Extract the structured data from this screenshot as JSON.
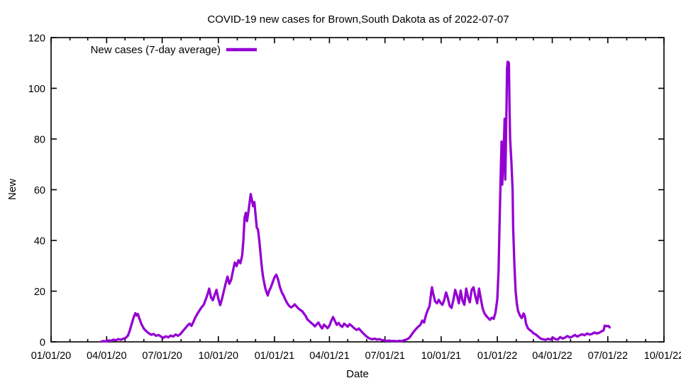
{
  "title": "COVID-19 new cases for Brown,South Dakota as of 2022-07-07",
  "chart_data": {
    "type": "line",
    "title": "COVID-19 new cases for Brown,South Dakota as of 2022-07-07",
    "xlabel": "Date",
    "ylabel": "New",
    "ylim": [
      0,
      120
    ],
    "xlim": [
      "2020-01-01",
      "2022-10-01"
    ],
    "grid": false,
    "legend_position": "top-left-inside",
    "y_ticks": [
      0,
      20,
      40,
      60,
      80,
      100,
      120
    ],
    "x_tick_labels": [
      "01/01/20",
      "04/01/20",
      "07/01/20",
      "10/01/20",
      "01/01/21",
      "04/01/21",
      "07/01/21",
      "10/01/21",
      "01/01/22",
      "04/01/22",
      "07/01/22",
      "10/01/22"
    ],
    "line_color": "#9400d3",
    "series": [
      {
        "name": "New cases (7-day average)",
        "color": "#9400d3",
        "points": [
          [
            "2020-03-23",
            0.1
          ],
          [
            "2020-03-27",
            0.3
          ],
          [
            "2020-03-31",
            0.2
          ],
          [
            "2020-04-04",
            0.6
          ],
          [
            "2020-04-08",
            0.4
          ],
          [
            "2020-04-12",
            0.9
          ],
          [
            "2020-04-16",
            0.6
          ],
          [
            "2020-04-20",
            1.1
          ],
          [
            "2020-04-24",
            0.8
          ],
          [
            "2020-04-28",
            1.2
          ],
          [
            "2020-05-02",
            1.5
          ],
          [
            "2020-05-06",
            2.5
          ],
          [
            "2020-05-09",
            4.5
          ],
          [
            "2020-05-12",
            7.0
          ],
          [
            "2020-05-15",
            9.5
          ],
          [
            "2020-05-18",
            11.3
          ],
          [
            "2020-05-20",
            10.4
          ],
          [
            "2020-05-22",
            11.0
          ],
          [
            "2020-05-25",
            9.0
          ],
          [
            "2020-05-28",
            7.0
          ],
          [
            "2020-06-01",
            5.2
          ],
          [
            "2020-06-05",
            4.2
          ],
          [
            "2020-06-09",
            3.4
          ],
          [
            "2020-06-13",
            2.8
          ],
          [
            "2020-06-17",
            3.1
          ],
          [
            "2020-06-21",
            2.4
          ],
          [
            "2020-06-25",
            2.7
          ],
          [
            "2020-06-29",
            2.1
          ],
          [
            "2020-07-03",
            1.6
          ],
          [
            "2020-07-07",
            2.2
          ],
          [
            "2020-07-11",
            1.8
          ],
          [
            "2020-07-15",
            2.5
          ],
          [
            "2020-07-19",
            2.1
          ],
          [
            "2020-07-23",
            2.9
          ],
          [
            "2020-07-27",
            2.4
          ],
          [
            "2020-07-31",
            3.1
          ],
          [
            "2020-08-04",
            4.3
          ],
          [
            "2020-08-08",
            5.4
          ],
          [
            "2020-08-12",
            6.6
          ],
          [
            "2020-08-15",
            7.2
          ],
          [
            "2020-08-18",
            6.3
          ],
          [
            "2020-08-21",
            7.8
          ],
          [
            "2020-08-24",
            9.5
          ],
          [
            "2020-08-27",
            10.8
          ],
          [
            "2020-08-30",
            12.0
          ],
          [
            "2020-09-03",
            13.5
          ],
          [
            "2020-09-07",
            14.6
          ],
          [
            "2020-09-10",
            16.5
          ],
          [
            "2020-09-13",
            18.5
          ],
          [
            "2020-09-16",
            21.0
          ],
          [
            "2020-09-19",
            17.5
          ],
          [
            "2020-09-22",
            16.4
          ],
          [
            "2020-09-25",
            18.5
          ],
          [
            "2020-09-28",
            20.5
          ],
          [
            "2020-10-01",
            17.0
          ],
          [
            "2020-10-04",
            14.5
          ],
          [
            "2020-10-07",
            17.0
          ],
          [
            "2020-10-10",
            20.0
          ],
          [
            "2020-10-13",
            23.0
          ],
          [
            "2020-10-16",
            25.7
          ],
          [
            "2020-10-19",
            22.9
          ],
          [
            "2020-10-22",
            24.5
          ],
          [
            "2020-10-25",
            28.0
          ],
          [
            "2020-10-28",
            31.3
          ],
          [
            "2020-10-31",
            29.9
          ],
          [
            "2020-11-03",
            32.2
          ],
          [
            "2020-11-06",
            31.0
          ],
          [
            "2020-11-09",
            34.1
          ],
          [
            "2020-11-11",
            40.0
          ],
          [
            "2020-11-13",
            49.0
          ],
          [
            "2020-11-15",
            50.9
          ],
          [
            "2020-11-17",
            47.6
          ],
          [
            "2020-11-19",
            51.0
          ],
          [
            "2020-11-21",
            54.5
          ],
          [
            "2020-11-23",
            58.3
          ],
          [
            "2020-11-25",
            56.0
          ],
          [
            "2020-11-27",
            53.5
          ],
          [
            "2020-11-29",
            55.1
          ],
          [
            "2020-12-01",
            50.0
          ],
          [
            "2020-12-03",
            45.0
          ],
          [
            "2020-12-05",
            44.3
          ],
          [
            "2020-12-07",
            40.0
          ],
          [
            "2020-12-09",
            35.0
          ],
          [
            "2020-12-11",
            30.0
          ],
          [
            "2020-12-13",
            26.0
          ],
          [
            "2020-12-15",
            23.5
          ],
          [
            "2020-12-17",
            21.0
          ],
          [
            "2020-12-19",
            19.5
          ],
          [
            "2020-12-21",
            18.3
          ],
          [
            "2020-12-23",
            20.0
          ],
          [
            "2020-12-26",
            21.5
          ],
          [
            "2020-12-29",
            23.5
          ],
          [
            "2021-01-01",
            25.5
          ],
          [
            "2021-01-04",
            26.5
          ],
          [
            "2021-01-07",
            24.5
          ],
          [
            "2021-01-10",
            21.5
          ],
          [
            "2021-01-13",
            19.5
          ],
          [
            "2021-01-16",
            18.2
          ],
          [
            "2021-01-19",
            16.5
          ],
          [
            "2021-01-22",
            15.2
          ],
          [
            "2021-01-25",
            14.2
          ],
          [
            "2021-01-28",
            13.6
          ],
          [
            "2021-01-31",
            14.0
          ],
          [
            "2021-02-03",
            14.8
          ],
          [
            "2021-02-06",
            14.0
          ],
          [
            "2021-02-09",
            13.2
          ],
          [
            "2021-02-12",
            12.6
          ],
          [
            "2021-02-15",
            12.2
          ],
          [
            "2021-02-18",
            11.2
          ],
          [
            "2021-02-21",
            10.2
          ],
          [
            "2021-02-24",
            8.8
          ],
          [
            "2021-02-27",
            8.2
          ],
          [
            "2021-03-02",
            7.5
          ],
          [
            "2021-03-05",
            6.9
          ],
          [
            "2021-03-08",
            6.1
          ],
          [
            "2021-03-11",
            6.9
          ],
          [
            "2021-03-14",
            7.6
          ],
          [
            "2021-03-17",
            6.3
          ],
          [
            "2021-03-20",
            5.3
          ],
          [
            "2021-03-23",
            6.8
          ],
          [
            "2021-03-26",
            6.1
          ],
          [
            "2021-03-29",
            5.4
          ],
          [
            "2021-04-01",
            6.4
          ],
          [
            "2021-04-04",
            8.3
          ],
          [
            "2021-04-07",
            9.8
          ],
          [
            "2021-04-10",
            8.2
          ],
          [
            "2021-04-13",
            6.7
          ],
          [
            "2021-04-16",
            7.5
          ],
          [
            "2021-04-19",
            6.4
          ],
          [
            "2021-04-22",
            5.9
          ],
          [
            "2021-04-25",
            7.2
          ],
          [
            "2021-04-28",
            6.6
          ],
          [
            "2021-05-01",
            6.0
          ],
          [
            "2021-05-04",
            7.0
          ],
          [
            "2021-05-07",
            6.4
          ],
          [
            "2021-05-10",
            5.7
          ],
          [
            "2021-05-13",
            5.1
          ],
          [
            "2021-05-16",
            4.7
          ],
          [
            "2021-05-19",
            5.3
          ],
          [
            "2021-05-22",
            4.5
          ],
          [
            "2021-05-25",
            3.7
          ],
          [
            "2021-05-28",
            3.0
          ],
          [
            "2021-05-31",
            2.3
          ],
          [
            "2021-06-03",
            1.7
          ],
          [
            "2021-06-07",
            1.2
          ],
          [
            "2021-06-11",
            1.0
          ],
          [
            "2021-06-14",
            1.3
          ],
          [
            "2021-06-18",
            0.9
          ],
          [
            "2021-06-22",
            1.1
          ],
          [
            "2021-06-26",
            0.7
          ],
          [
            "2021-06-30",
            0.6
          ],
          [
            "2021-07-04",
            0.4
          ],
          [
            "2021-07-08",
            0.5
          ],
          [
            "2021-07-12",
            0.3
          ],
          [
            "2021-07-16",
            0.4
          ],
          [
            "2021-07-20",
            0.2
          ],
          [
            "2021-07-24",
            0.4
          ],
          [
            "2021-07-28",
            0.3
          ],
          [
            "2021-08-01",
            0.6
          ],
          [
            "2021-08-05",
            0.9
          ],
          [
            "2021-08-09",
            1.4
          ],
          [
            "2021-08-13",
            2.6
          ],
          [
            "2021-08-16",
            3.7
          ],
          [
            "2021-08-19",
            4.6
          ],
          [
            "2021-08-22",
            5.4
          ],
          [
            "2021-08-25",
            6.1
          ],
          [
            "2021-08-28",
            6.7
          ],
          [
            "2021-08-31",
            8.4
          ],
          [
            "2021-09-03",
            7.6
          ],
          [
            "2021-09-06",
            10.5
          ],
          [
            "2021-09-09",
            12.6
          ],
          [
            "2021-09-12",
            14.0
          ],
          [
            "2021-09-15",
            20.0
          ],
          [
            "2021-09-16",
            21.5
          ],
          [
            "2021-09-18",
            19.0
          ],
          [
            "2021-09-21",
            16.0
          ],
          [
            "2021-09-24",
            15.2
          ],
          [
            "2021-09-27",
            16.6
          ],
          [
            "2021-09-30",
            15.4
          ],
          [
            "2021-10-03",
            14.6
          ],
          [
            "2021-10-06",
            16.5
          ],
          [
            "2021-10-09",
            19.5
          ],
          [
            "2021-10-12",
            17.2
          ],
          [
            "2021-10-15",
            14.2
          ],
          [
            "2021-10-18",
            13.4
          ],
          [
            "2021-10-21",
            16.5
          ],
          [
            "2021-10-24",
            20.5
          ],
          [
            "2021-10-27",
            18.2
          ],
          [
            "2021-10-30",
            15.2
          ],
          [
            "2021-11-02",
            20.2
          ],
          [
            "2021-11-05",
            16.2
          ],
          [
            "2021-11-08",
            14.6
          ],
          [
            "2021-11-11",
            21.0
          ],
          [
            "2021-11-14",
            17.6
          ],
          [
            "2021-11-17",
            15.6
          ],
          [
            "2021-11-20",
            20.5
          ],
          [
            "2021-11-23",
            21.5
          ],
          [
            "2021-11-26",
            18.0
          ],
          [
            "2021-11-29",
            15.2
          ],
          [
            "2021-12-02",
            21.0
          ],
          [
            "2021-12-05",
            17.0
          ],
          [
            "2021-12-08",
            13.2
          ],
          [
            "2021-12-11",
            11.2
          ],
          [
            "2021-12-14",
            10.2
          ],
          [
            "2021-12-17",
            9.4
          ],
          [
            "2021-12-20",
            8.7
          ],
          [
            "2021-12-23",
            9.5
          ],
          [
            "2021-12-26",
            9.1
          ],
          [
            "2021-12-29",
            11.5
          ],
          [
            "2022-01-01",
            17.0
          ],
          [
            "2022-01-03",
            28.0
          ],
          [
            "2022-01-05",
            50.0
          ],
          [
            "2022-01-07",
            70.0
          ],
          [
            "2022-01-08",
            79.0
          ],
          [
            "2022-01-09",
            62.0
          ],
          [
            "2022-01-11",
            72.0
          ],
          [
            "2022-01-13",
            88.0
          ],
          [
            "2022-01-14",
            64.0
          ],
          [
            "2022-01-16",
            92.0
          ],
          [
            "2022-01-17",
            108.0
          ],
          [
            "2022-01-18",
            110.5
          ],
          [
            "2022-01-20",
            110.0
          ],
          [
            "2022-01-21",
            92.0
          ],
          [
            "2022-01-22",
            80.0
          ],
          [
            "2022-01-24",
            71.0
          ],
          [
            "2022-01-26",
            60.0
          ],
          [
            "2022-01-27",
            45.0
          ],
          [
            "2022-01-29",
            30.0
          ],
          [
            "2022-01-31",
            20.0
          ],
          [
            "2022-02-02",
            15.0
          ],
          [
            "2022-02-04",
            12.2
          ],
          [
            "2022-02-07",
            10.4
          ],
          [
            "2022-02-10",
            9.4
          ],
          [
            "2022-02-13",
            11.2
          ],
          [
            "2022-02-15",
            10.2
          ],
          [
            "2022-02-17",
            7.2
          ],
          [
            "2022-02-20",
            5.4
          ],
          [
            "2022-02-23",
            4.7
          ],
          [
            "2022-02-26",
            4.2
          ],
          [
            "2022-03-01",
            3.4
          ],
          [
            "2022-03-05",
            2.9
          ],
          [
            "2022-03-09",
            2.1
          ],
          [
            "2022-03-13",
            1.3
          ],
          [
            "2022-03-17",
            1.0
          ],
          [
            "2022-03-21",
            0.8
          ],
          [
            "2022-03-25",
            1.2
          ],
          [
            "2022-03-29",
            0.9
          ],
          [
            "2022-04-02",
            1.7
          ],
          [
            "2022-04-06",
            1.1
          ],
          [
            "2022-04-10",
            0.9
          ],
          [
            "2022-04-14",
            1.9
          ],
          [
            "2022-04-18",
            1.3
          ],
          [
            "2022-04-22",
            1.7
          ],
          [
            "2022-04-26",
            2.3
          ],
          [
            "2022-04-30",
            1.7
          ],
          [
            "2022-05-04",
            2.1
          ],
          [
            "2022-05-08",
            2.7
          ],
          [
            "2022-05-12",
            2.1
          ],
          [
            "2022-05-16",
            2.6
          ],
          [
            "2022-05-20",
            3.0
          ],
          [
            "2022-05-24",
            2.6
          ],
          [
            "2022-05-28",
            3.3
          ],
          [
            "2022-06-01",
            2.9
          ],
          [
            "2022-06-05",
            3.1
          ],
          [
            "2022-06-09",
            3.7
          ],
          [
            "2022-06-13",
            3.3
          ],
          [
            "2022-06-17",
            3.6
          ],
          [
            "2022-06-21",
            4.2
          ],
          [
            "2022-06-24",
            4.5
          ],
          [
            "2022-06-26",
            6.4
          ],
          [
            "2022-06-29",
            6.2
          ],
          [
            "2022-07-02",
            6.3
          ],
          [
            "2022-07-04",
            5.7
          ]
        ]
      }
    ]
  }
}
